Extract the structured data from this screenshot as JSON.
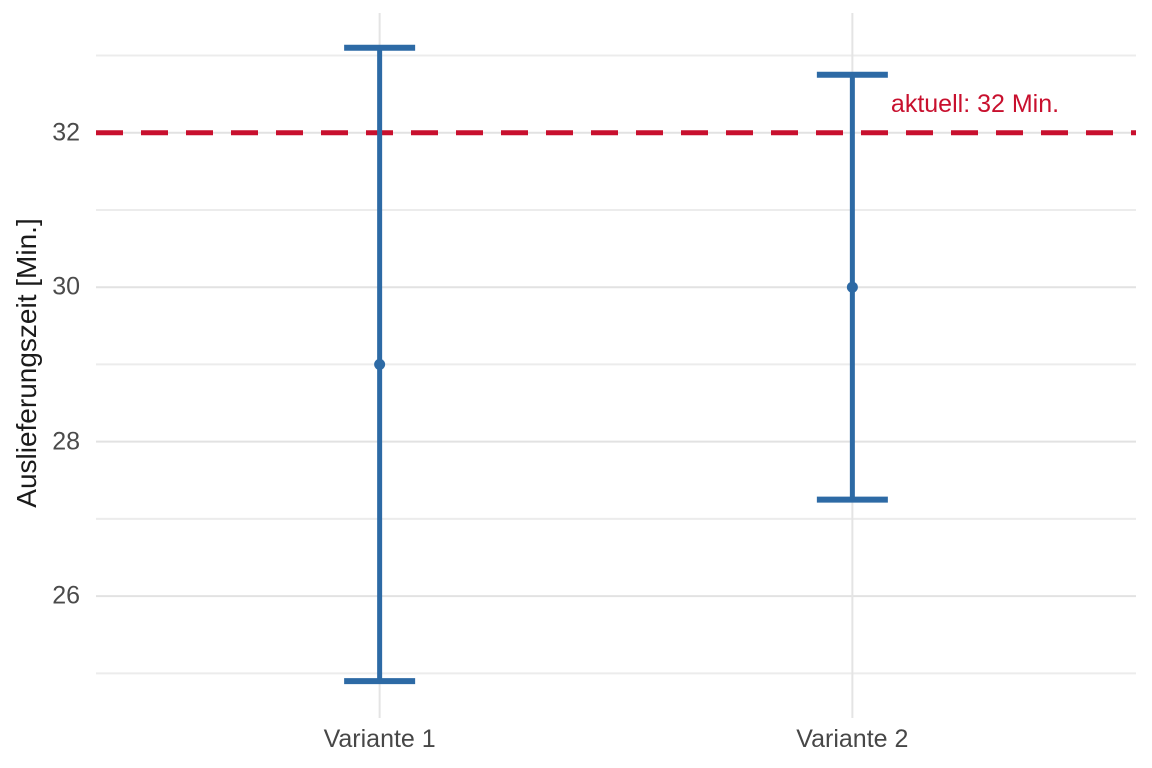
{
  "chart_data": {
    "type": "errorbar",
    "title": "",
    "xlabel": "",
    "ylabel": "Auslieferungszeit [Min.]",
    "categories": [
      "Variante 1",
      "Variante 2"
    ],
    "series": [
      {
        "name": "Variante 1",
        "mean": 29.0,
        "ci_low": 24.9,
        "ci_high": 33.1
      },
      {
        "name": "Variante 2",
        "mean": 30.0,
        "ci_low": 27.25,
        "ci_high": 32.75
      }
    ],
    "y_major_ticks": [
      26,
      28,
      30,
      32
    ],
    "y_minor_ticks": [
      25,
      27,
      29,
      31,
      33
    ],
    "ylim": [
      24.5,
      33.55
    ],
    "reference_line": {
      "value": 32,
      "label": "aktuell: 32 Min."
    },
    "grid": "major+minor, light gray, no axis lines",
    "legend": false
  },
  "colors": {
    "point_and_errorbar": "#2d6aa5",
    "reference_line": "#c8102e",
    "annotation_text": "#c8102e",
    "grid_major": "#e2e2e2",
    "grid_minor": "#ececec",
    "grid_vertical": "#e4e4e4",
    "tick_text": "#4b4b4b",
    "axis_title_text": "#1b1b1b",
    "background": "#ffffff"
  }
}
